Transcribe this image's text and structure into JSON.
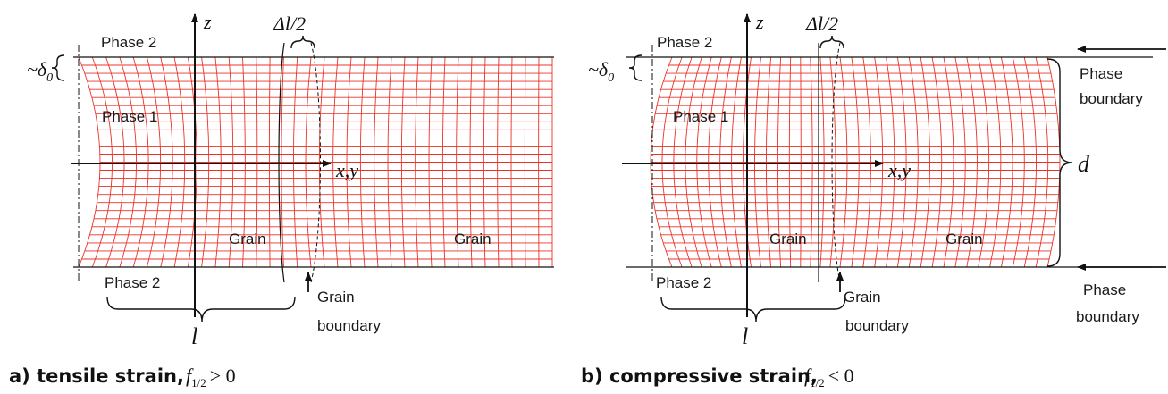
{
  "panels": [
    {
      "id": "a",
      "caption": "a) tensile strain,",
      "math_f": "f",
      "math_sub": "1/2",
      "math_rel": "> 0",
      "phase2_top": "Phase 2",
      "phase1": "Phase 1",
      "phase2_bottom": "Phase 2",
      "grain_left": "Grain",
      "grain_right": "Grain",
      "grain_boundary_1": "Grain",
      "grain_boundary_2": "boundary",
      "axis_z": "z",
      "axis_xy": "x,y",
      "delta_l": "Δl/2",
      "delta0": "~δ",
      "delta0_sub": "0",
      "l_label": "l"
    },
    {
      "id": "b",
      "caption": "b) compressive strain,",
      "math_f": "f",
      "math_sub": "1/2",
      "math_rel": "< 0",
      "phase2_top": "Phase 2",
      "phase1": "Phase 1",
      "phase2_bottom": "Phase 2",
      "grain_left": "Grain",
      "grain_right": "Grain",
      "grain_boundary_1": "Grain",
      "grain_boundary_2": "boundary",
      "axis_z": "z",
      "axis_xy": "x,y",
      "delta_l": "Δl/2",
      "delta0": "~δ",
      "delta0_sub": "0",
      "l_label": "l",
      "d_label": "d",
      "phase_boundary_top_1": "Phase",
      "phase_boundary_top_2": "boundary",
      "phase_boundary_bottom_1": "Phase",
      "phase_boundary_bottom_2": "boundary"
    }
  ],
  "colors": {
    "mesh": "#e8332a",
    "ink": "#111111"
  }
}
